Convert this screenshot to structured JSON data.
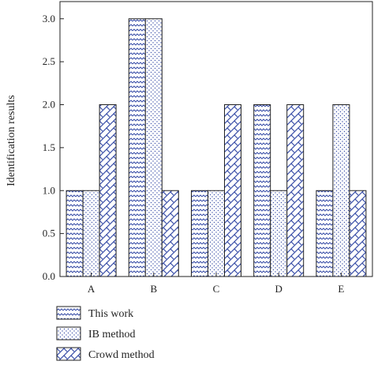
{
  "chart_data": {
    "type": "bar",
    "title": "",
    "xlabel": "",
    "ylabel": "Identification results",
    "categories": [
      "A",
      "B",
      "C",
      "D",
      "E"
    ],
    "ylim": [
      0,
      3.2
    ],
    "yticks": [
      "0.0",
      "0.5",
      "1.0",
      "1.5",
      "2.0",
      "2.5",
      "3.0"
    ],
    "grid": false,
    "legend_position": "bottom-left",
    "series": [
      {
        "name": "This work",
        "values": [
          1,
          3,
          1,
          2,
          1
        ],
        "pattern": "wave",
        "color": "#3a4fa8"
      },
      {
        "name": "IB method",
        "values": [
          1,
          3,
          1,
          1,
          2
        ],
        "pattern": "dots",
        "color": "#3a4fa8"
      },
      {
        "name": "Crowd method",
        "values": [
          2,
          1,
          2,
          2,
          1
        ],
        "pattern": "crosshatch",
        "color": "#3a4fa8"
      }
    ]
  }
}
